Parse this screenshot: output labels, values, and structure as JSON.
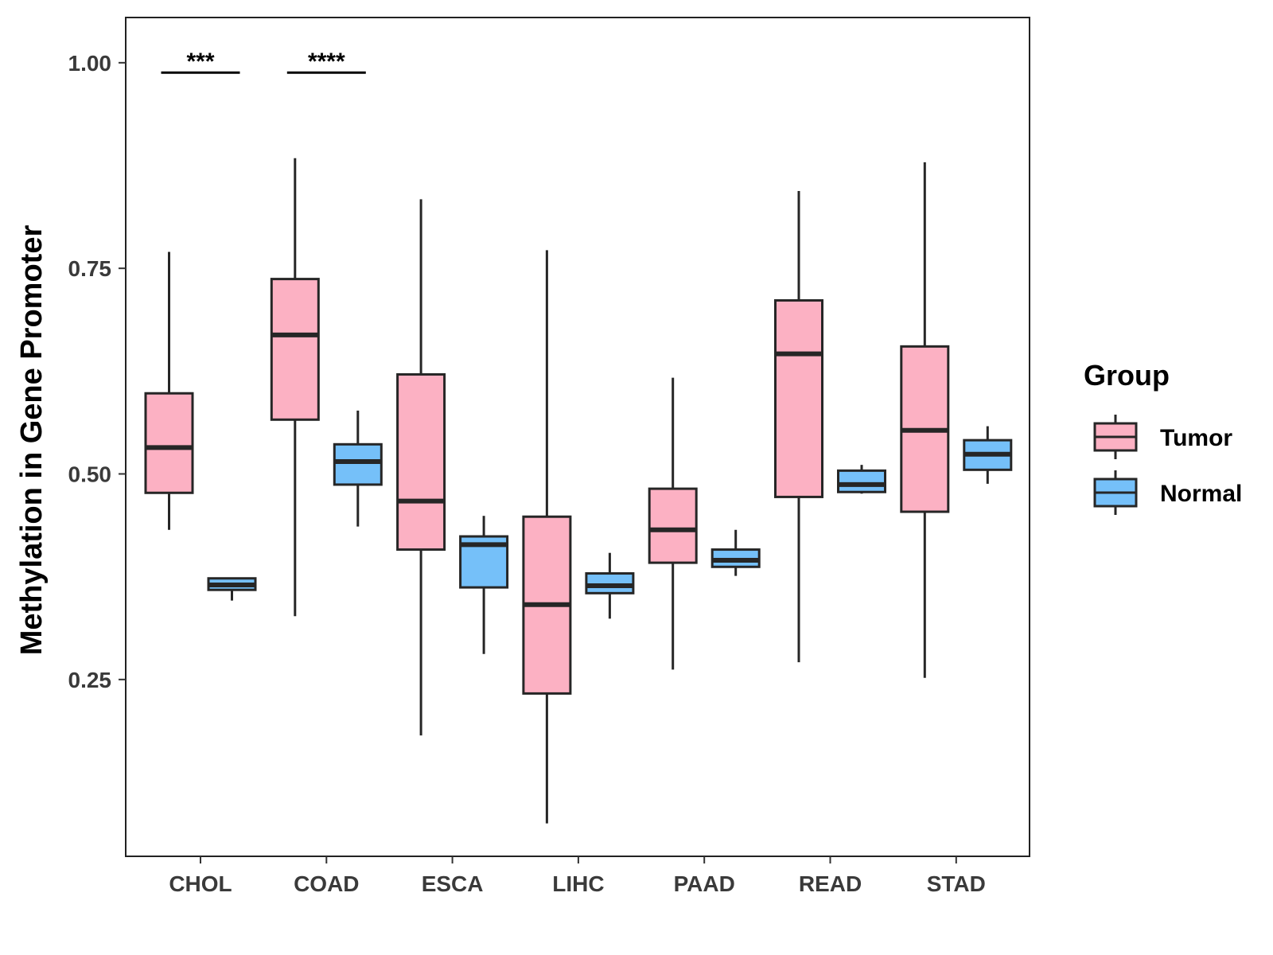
{
  "chart_data": {
    "type": "boxplot",
    "title": "",
    "xlabel": "",
    "ylabel": "Methylation in Gene Promoter",
    "ylim": [
      0.035,
      1.055
    ],
    "yticks": [
      0.25,
      0.5,
      0.75,
      1.0
    ],
    "ytick_labels": [
      "0.25",
      "0.50",
      "0.75",
      "1.00"
    ],
    "categories": [
      "CHOL",
      "COAD",
      "ESCA",
      "LIHC",
      "PAAD",
      "READ",
      "STAD"
    ],
    "legend": {
      "title": "Group",
      "position": "right",
      "entries": [
        {
          "name": "Tumor",
          "color": "#FCB1C3"
        },
        {
          "name": "Normal",
          "color": "#75C0F9"
        }
      ]
    },
    "series": [
      {
        "name": "Tumor",
        "color": "#FCB1C3",
        "boxes": [
          {
            "whisker_low": 0.432,
            "q1": 0.477,
            "median": 0.532,
            "q3": 0.598,
            "whisker_high": 0.77
          },
          {
            "whisker_low": 0.327,
            "q1": 0.566,
            "median": 0.669,
            "q3": 0.737,
            "whisker_high": 0.884
          },
          {
            "whisker_low": 0.182,
            "q1": 0.408,
            "median": 0.467,
            "q3": 0.621,
            "whisker_high": 0.834
          },
          {
            "whisker_low": 0.075,
            "q1": 0.233,
            "median": 0.341,
            "q3": 0.448,
            "whisker_high": 0.772
          },
          {
            "whisker_low": 0.262,
            "q1": 0.392,
            "median": 0.432,
            "q3": 0.482,
            "whisker_high": 0.617
          },
          {
            "whisker_low": 0.271,
            "q1": 0.472,
            "median": 0.646,
            "q3": 0.711,
            "whisker_high": 0.844
          },
          {
            "whisker_low": 0.252,
            "q1": 0.454,
            "median": 0.553,
            "q3": 0.655,
            "whisker_high": 0.879
          }
        ]
      },
      {
        "name": "Normal",
        "color": "#75C0F9",
        "boxes": [
          {
            "whisker_low": 0.346,
            "q1": 0.359,
            "median": 0.365,
            "q3": 0.373,
            "whisker_high": 0.373
          },
          {
            "whisker_low": 0.436,
            "q1": 0.487,
            "median": 0.515,
            "q3": 0.536,
            "whisker_high": 0.577
          },
          {
            "whisker_low": 0.281,
            "q1": 0.362,
            "median": 0.414,
            "q3": 0.424,
            "whisker_high": 0.449
          },
          {
            "whisker_low": 0.324,
            "q1": 0.355,
            "median": 0.364,
            "q3": 0.379,
            "whisker_high": 0.404
          },
          {
            "whisker_low": 0.376,
            "q1": 0.387,
            "median": 0.395,
            "q3": 0.408,
            "whisker_high": 0.432
          },
          {
            "whisker_low": 0.476,
            "q1": 0.478,
            "median": 0.487,
            "q3": 0.504,
            "whisker_high": 0.511
          },
          {
            "whisker_low": 0.488,
            "q1": 0.505,
            "median": 0.524,
            "q3": 0.541,
            "whisker_high": 0.558
          }
        ]
      }
    ],
    "significance": [
      {
        "category": "CHOL",
        "label": "***",
        "y": 0.988
      },
      {
        "category": "COAD",
        "label": "****",
        "y": 0.988
      }
    ]
  }
}
